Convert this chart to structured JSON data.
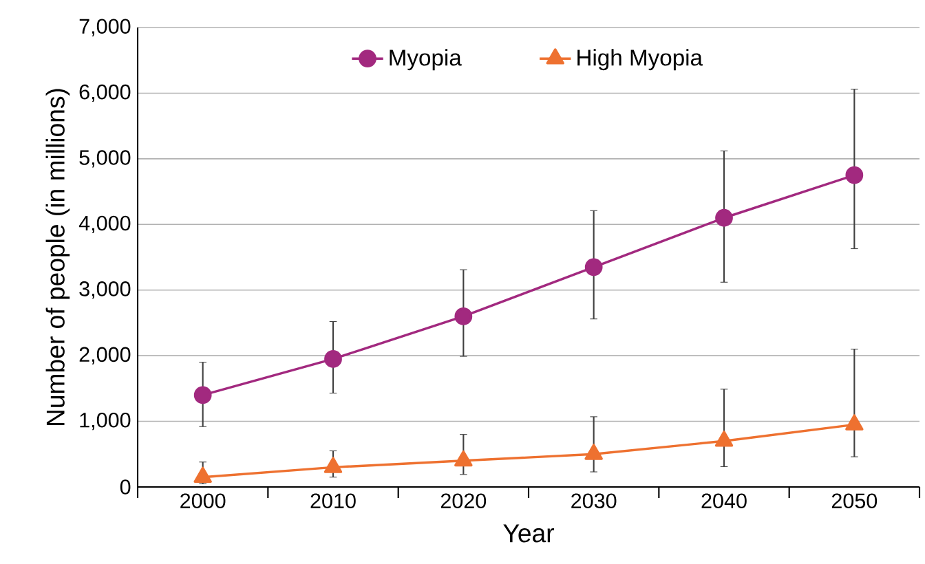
{
  "chart_data": {
    "type": "line",
    "xlabel": "Year",
    "ylabel": "Number of people (in millions)",
    "x": [
      2000,
      2010,
      2020,
      2030,
      2040,
      2050
    ],
    "series": [
      {
        "name": "Myopia",
        "color": "#a2297f",
        "marker": "circle",
        "values": [
          1400,
          1950,
          2600,
          3350,
          4100,
          4750
        ],
        "errors": [
          [
            920,
            1900
          ],
          [
            1430,
            2520
          ],
          [
            1990,
            3310
          ],
          [
            2560,
            4210
          ],
          [
            3120,
            5120
          ],
          [
            3630,
            6060
          ]
        ]
      },
      {
        "name": "High Myopia",
        "color": "#ee7130",
        "marker": "triangle",
        "values": [
          150,
          300,
          400,
          500,
          700,
          950
        ],
        "errors": [
          [
            50,
            380
          ],
          [
            150,
            550
          ],
          [
            190,
            800
          ],
          [
            230,
            1070
          ],
          [
            310,
            1490
          ],
          [
            460,
            2100
          ]
        ]
      }
    ],
    "xlim": [
      1995,
      2055
    ],
    "xticks": [
      {
        "value": 1995,
        "label": null
      },
      2000,
      {
        "value": 2005,
        "label": null
      },
      2010,
      {
        "value": 2015,
        "label": null
      },
      2020,
      {
        "value": 2025,
        "label": null
      },
      2030,
      {
        "value": 2035,
        "label": null
      },
      2040,
      {
        "value": 2045,
        "label": null
      },
      2050,
      {
        "value": 2055,
        "label": null
      }
    ],
    "ylim": [
      0,
      7000
    ],
    "yticks": [
      0,
      {
        "value": 1000,
        "label": "1,000"
      },
      {
        "value": 2000,
        "label": "2,000"
      },
      {
        "value": 3000,
        "label": "3,000"
      },
      {
        "value": 4000,
        "label": "4,000"
      },
      {
        "value": 5000,
        "label": "5,000"
      },
      {
        "value": 6000,
        "label": "6,000"
      },
      {
        "value": 7000,
        "label": "7,000"
      }
    ],
    "grid": "y",
    "legend": "top",
    "line_style": "solid"
  }
}
